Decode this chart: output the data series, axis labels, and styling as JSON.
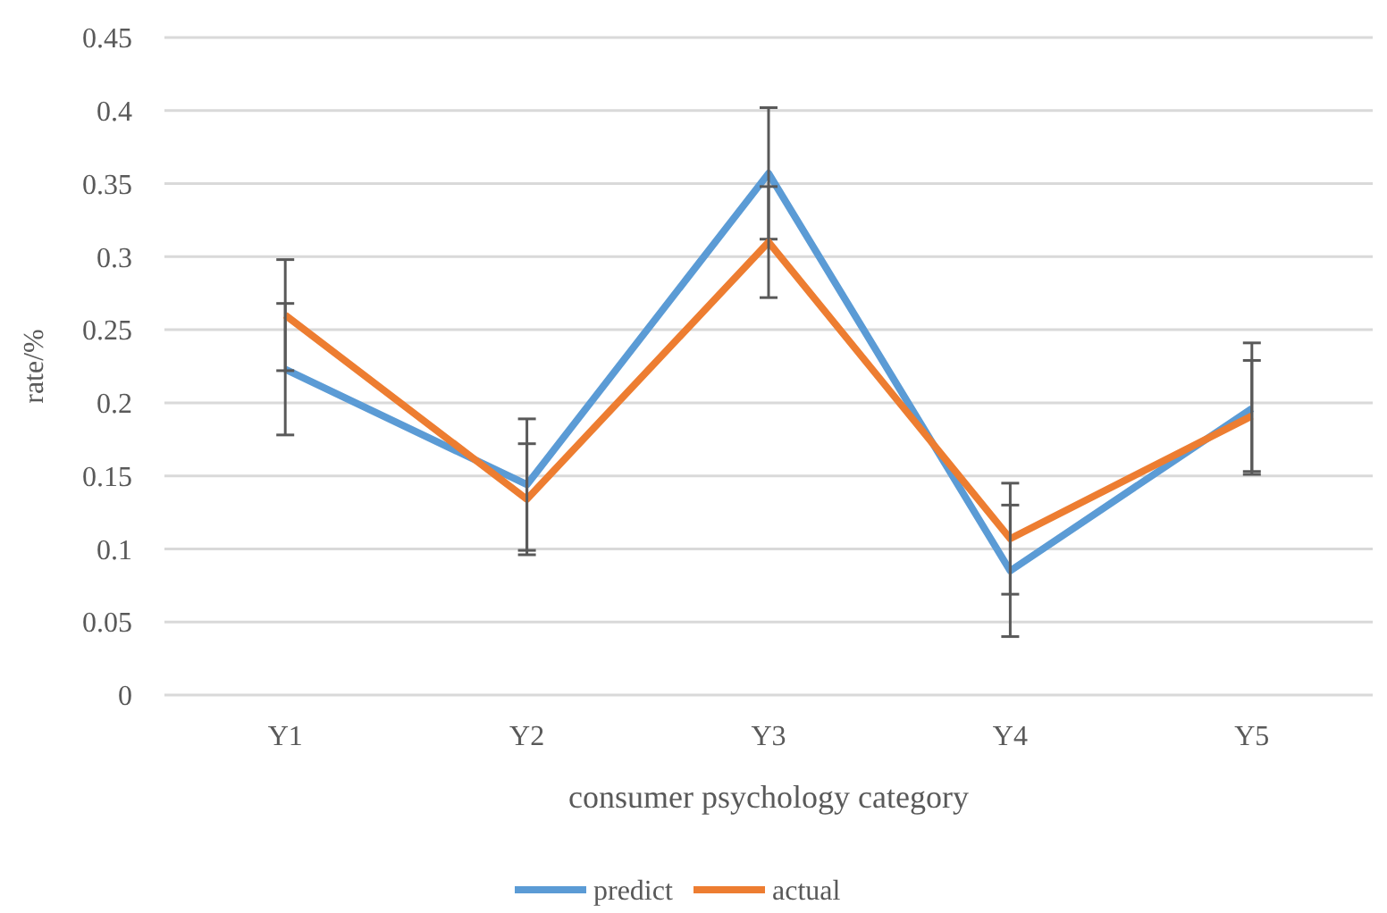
{
  "chart_data": {
    "type": "line",
    "xlabel": "consumer psychology category",
    "ylabel": "rate/%",
    "categories": [
      "Y1",
      "Y2",
      "Y3",
      "Y4",
      "Y5"
    ],
    "series": [
      {
        "name": "predict",
        "color": "#5b9bd5",
        "values": [
          0.223,
          0.144,
          0.357,
          0.085,
          0.196
        ],
        "errors": [
          0.045,
          0.045,
          0.045,
          0.045,
          0.045
        ]
      },
      {
        "name": "actual",
        "color": "#ed7d31",
        "values": [
          0.26,
          0.134,
          0.31,
          0.107,
          0.191
        ],
        "errors": [
          0.038,
          0.038,
          0.038,
          0.038,
          0.038
        ]
      }
    ],
    "ylim": [
      0,
      0.45
    ],
    "yticks": [
      0,
      0.05,
      0.1,
      0.15,
      0.2,
      0.25,
      0.3,
      0.35,
      0.4,
      0.45
    ],
    "grid": "y",
    "legend": "bottom",
    "marker": "none",
    "line_style": "solid"
  }
}
